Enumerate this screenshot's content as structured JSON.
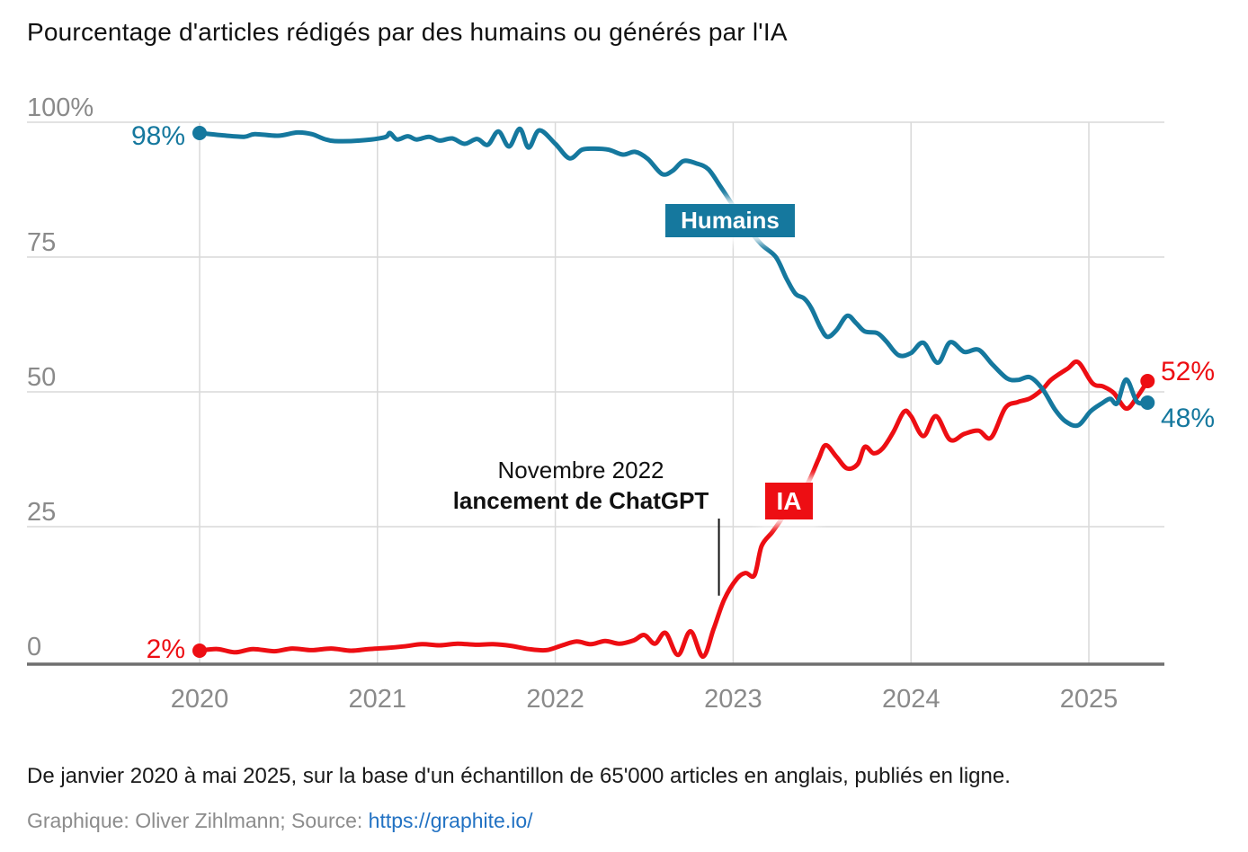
{
  "title": "Pourcentage d'articles rédigés par des humains ou générés par l'IA",
  "badges": {
    "humans": "Humains",
    "ai": "IA"
  },
  "footer": {
    "note": "De janvier 2020 à mai 2025, sur la base d'un échantillon de 65'000 articles en anglais, publiés en ligne.",
    "credit_prefix": "Graphique: Oliver Zihlmann; Source: ",
    "source_url": "https://graphite.io/"
  },
  "colors": {
    "humans_line": "#15789E",
    "ai_line": "#ED0E13",
    "gridline": "#D9D9D9",
    "axis": "#6F6F6F",
    "tick_text": "#8A8A8A",
    "annotation_text": "#111111",
    "link": "#2272C3"
  },
  "chart_data": {
    "type": "line",
    "title": "Pourcentage d'articles rédigés par des humains ou générés par l'IA",
    "xlabel": "",
    "ylabel": "",
    "xlim": [
      2019.4,
      2025.45
    ],
    "ylim": [
      0,
      100
    ],
    "grid": true,
    "x_axis": {
      "ticks": [
        2020,
        2021,
        2022,
        2023,
        2024,
        2025
      ],
      "labels": [
        "2020",
        "2021",
        "2022",
        "2023",
        "2024",
        "2025"
      ]
    },
    "y_axis": {
      "ticks": [
        0,
        25,
        50,
        75,
        100
      ],
      "labels": [
        "0",
        "25",
        "50",
        "75",
        "100%"
      ]
    },
    "annotation": {
      "line1": "Novembre 2022",
      "line2": "lancement de ChatGPT",
      "marker_x": 2022.92,
      "marker_y_from": 12.2,
      "marker_y_to": 26.5
    },
    "series": [
      {
        "name": "Humains",
        "color": "#15789E",
        "start_label": "98%",
        "end_label": "48%",
        "points": [
          [
            2020.0,
            98
          ],
          [
            2020.12,
            97.6
          ],
          [
            2020.25,
            97.3
          ],
          [
            2020.31,
            97.8
          ],
          [
            2020.44,
            97.5
          ],
          [
            2020.55,
            98.1
          ],
          [
            2020.63,
            97.8
          ],
          [
            2020.7,
            96.9
          ],
          [
            2020.76,
            96.5
          ],
          [
            2020.9,
            96.6
          ],
          [
            2021.04,
            97.2
          ],
          [
            2021.07,
            98.0
          ],
          [
            2021.11,
            96.8
          ],
          [
            2021.17,
            97.4
          ],
          [
            2021.22,
            96.8
          ],
          [
            2021.29,
            97.3
          ],
          [
            2021.35,
            96.6
          ],
          [
            2021.42,
            97.0
          ],
          [
            2021.49,
            96.0
          ],
          [
            2021.56,
            96.9
          ],
          [
            2021.62,
            95.8
          ],
          [
            2021.68,
            98.3
          ],
          [
            2021.74,
            95.5
          ],
          [
            2021.8,
            98.8
          ],
          [
            2021.85,
            95.3
          ],
          [
            2021.91,
            98.5
          ],
          [
            2022.0,
            96.0
          ],
          [
            2022.08,
            93.3
          ],
          [
            2022.15,
            94.9
          ],
          [
            2022.22,
            95.1
          ],
          [
            2022.3,
            94.9
          ],
          [
            2022.38,
            94.0
          ],
          [
            2022.45,
            94.5
          ],
          [
            2022.52,
            93.2
          ],
          [
            2022.6,
            90.4
          ],
          [
            2022.66,
            91.0
          ],
          [
            2022.72,
            92.8
          ],
          [
            2022.79,
            92.4
          ],
          [
            2022.86,
            91.3
          ],
          [
            2022.93,
            88.0
          ],
          [
            2023.0,
            84.5
          ],
          [
            2023.08,
            80.5
          ],
          [
            2023.16,
            77.3
          ],
          [
            2023.24,
            75.0
          ],
          [
            2023.3,
            71.0
          ],
          [
            2023.35,
            68.2
          ],
          [
            2023.4,
            67.3
          ],
          [
            2023.44,
            65.5
          ],
          [
            2023.49,
            62.0
          ],
          [
            2023.53,
            60.2
          ],
          [
            2023.58,
            61.4
          ],
          [
            2023.64,
            64.1
          ],
          [
            2023.69,
            62.8
          ],
          [
            2023.74,
            61.2
          ],
          [
            2023.81,
            60.9
          ],
          [
            2023.86,
            59.4
          ],
          [
            2023.93,
            56.8
          ],
          [
            2024.0,
            57.2
          ],
          [
            2024.07,
            59.1
          ],
          [
            2024.15,
            55.4
          ],
          [
            2024.22,
            59.2
          ],
          [
            2024.3,
            57.4
          ],
          [
            2024.38,
            57.8
          ],
          [
            2024.46,
            55.0
          ],
          [
            2024.54,
            52.5
          ],
          [
            2024.6,
            52.2
          ],
          [
            2024.67,
            52.7
          ],
          [
            2024.74,
            50.5
          ],
          [
            2024.81,
            46.7
          ],
          [
            2024.87,
            44.5
          ],
          [
            2024.94,
            43.8
          ],
          [
            2025.01,
            46.4
          ],
          [
            2025.07,
            47.8
          ],
          [
            2025.12,
            48.7
          ],
          [
            2025.16,
            47.9
          ],
          [
            2025.21,
            52.3
          ],
          [
            2025.27,
            48.2
          ],
          [
            2025.33,
            48
          ]
        ]
      },
      {
        "name": "IA",
        "color": "#ED0E13",
        "start_label": "2%",
        "end_label": "52%",
        "points": [
          [
            2020.0,
            2
          ],
          [
            2020.1,
            2.3
          ],
          [
            2020.2,
            1.7
          ],
          [
            2020.3,
            2.3
          ],
          [
            2020.42,
            1.9
          ],
          [
            2020.52,
            2.4
          ],
          [
            2020.63,
            2.1
          ],
          [
            2020.74,
            2.4
          ],
          [
            2020.85,
            2.0
          ],
          [
            2020.95,
            2.3
          ],
          [
            2021.05,
            2.5
          ],
          [
            2021.15,
            2.8
          ],
          [
            2021.25,
            3.2
          ],
          [
            2021.35,
            3.0
          ],
          [
            2021.45,
            3.3
          ],
          [
            2021.55,
            3.1
          ],
          [
            2021.65,
            3.2
          ],
          [
            2021.75,
            2.9
          ],
          [
            2021.85,
            2.3
          ],
          [
            2021.95,
            2.1
          ],
          [
            2022.04,
            3.0
          ],
          [
            2022.12,
            3.7
          ],
          [
            2022.2,
            3.2
          ],
          [
            2022.28,
            3.8
          ],
          [
            2022.36,
            3.3
          ],
          [
            2022.44,
            3.9
          ],
          [
            2022.5,
            4.9
          ],
          [
            2022.56,
            3.3
          ],
          [
            2022.62,
            5.3
          ],
          [
            2022.69,
            1.2
          ],
          [
            2022.76,
            5.6
          ],
          [
            2022.83,
            0.9
          ],
          [
            2022.89,
            6.0
          ],
          [
            2022.95,
            11.5
          ],
          [
            2023.02,
            15.3
          ],
          [
            2023.07,
            16.4
          ],
          [
            2023.12,
            16.0
          ],
          [
            2023.16,
            21.4
          ],
          [
            2023.22,
            24.0
          ],
          [
            2023.28,
            26.8
          ],
          [
            2023.35,
            30.2
          ],
          [
            2023.42,
            33.1
          ],
          [
            2023.48,
            37.5
          ],
          [
            2023.52,
            40.1
          ],
          [
            2023.58,
            38.0
          ],
          [
            2023.64,
            35.8
          ],
          [
            2023.7,
            36.6
          ],
          [
            2023.74,
            39.8
          ],
          [
            2023.79,
            38.6
          ],
          [
            2023.84,
            39.5
          ],
          [
            2023.9,
            42.5
          ],
          [
            2023.96,
            46.3
          ],
          [
            2024.0,
            45.5
          ],
          [
            2024.07,
            41.8
          ],
          [
            2024.14,
            45.5
          ],
          [
            2024.22,
            41.1
          ],
          [
            2024.3,
            42.2
          ],
          [
            2024.38,
            42.8
          ],
          [
            2024.45,
            41.5
          ],
          [
            2024.53,
            47.0
          ],
          [
            2024.6,
            48.1
          ],
          [
            2024.67,
            48.8
          ],
          [
            2024.74,
            50.5
          ],
          [
            2024.79,
            52.3
          ],
          [
            2024.88,
            54.3
          ],
          [
            2024.94,
            55.5
          ],
          [
            2025.02,
            51.6
          ],
          [
            2025.08,
            51.0
          ],
          [
            2025.14,
            49.8
          ],
          [
            2025.21,
            46.9
          ],
          [
            2025.27,
            49.0
          ],
          [
            2025.33,
            52
          ]
        ]
      }
    ]
  }
}
